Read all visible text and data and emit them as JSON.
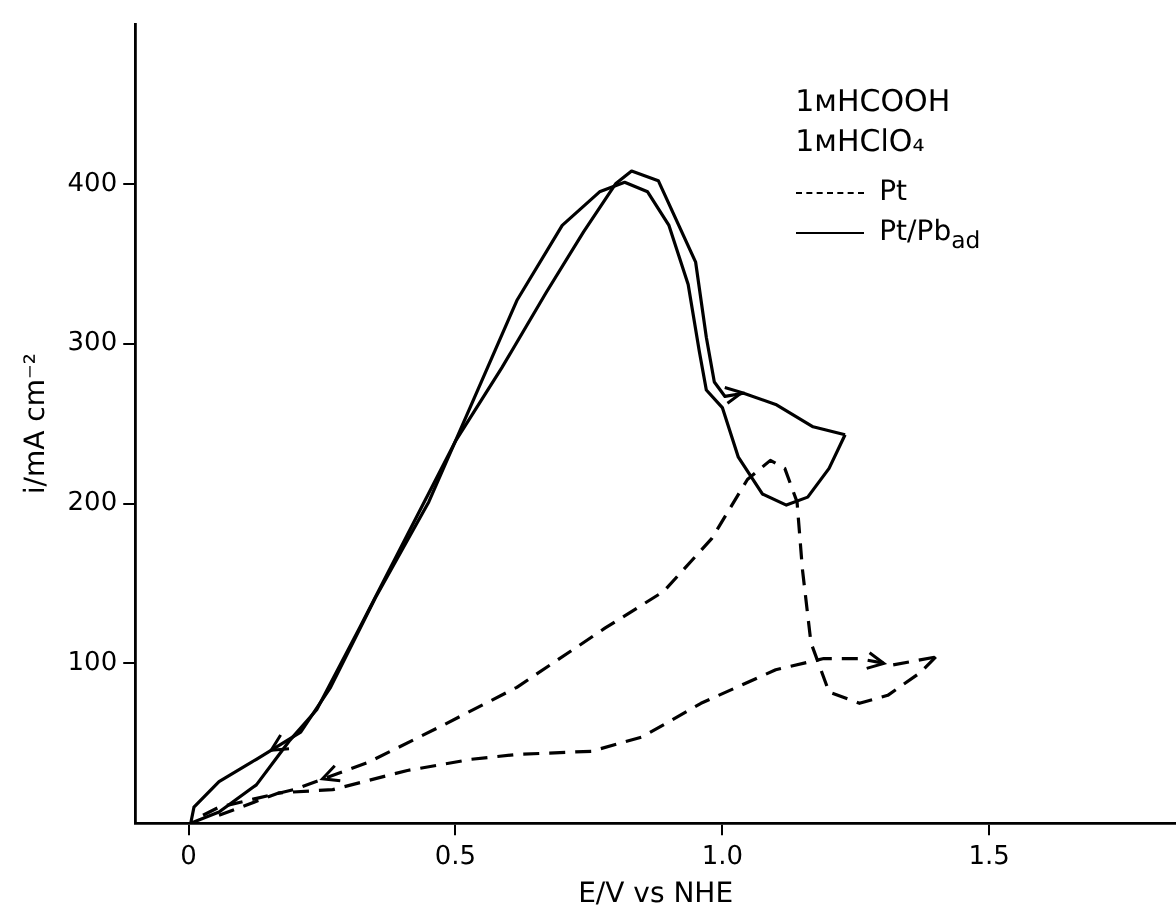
{
  "chart_data": {
    "type": "line",
    "xlabel": "E/V vs NHE",
    "ylabel": "i/mA cm⁻²",
    "annotations": [
      "1мHCOOH",
      "1мHClO₄"
    ],
    "xlim": [
      -0.1,
      1.85
    ],
    "ylim": [
      0,
      500
    ],
    "xticks": [
      {
        "value": 0,
        "label": "0"
      },
      0.5,
      {
        "value": 1,
        "label": "1.0"
      },
      1.5
    ],
    "yticks": [
      100,
      200,
      300,
      400
    ],
    "grid": false,
    "legend": "top right",
    "marker": "none",
    "series": [
      {
        "name": "Pt",
        "color": "#000000",
        "line_style": "dashed",
        "x": [
          0.057,
          0.17,
          0.27,
          0.41,
          0.53,
          0.615,
          0.755,
          0.85,
          0.96,
          1.1,
          1.19,
          1.255,
          1.32,
          1.4
        ],
        "values": [
          5,
          19,
          21,
          33,
          40,
          43,
          45,
          54,
          75,
          96,
          103,
          103,
          99,
          104
        ]
      },
      {
        "color": "#000000",
        "line_style": "dashed",
        "x": [
          1.4,
          1.37,
          1.31,
          1.257,
          1.2,
          1.166,
          1.15,
          1.14,
          1.117,
          1.09,
          1.047,
          0.98,
          0.89,
          0.78,
          0.615,
          0.475,
          0.336,
          0.197,
          0.057,
          0.015
        ],
        "values": [
          104,
          94,
          80,
          75,
          82,
          113,
          159,
          201,
          222,
          227,
          215,
          178,
          145,
          122,
          85,
          61,
          38,
          21,
          10,
          3
        ]
      },
      {
        "name": "Pt/Pb$_{ad}$",
        "color": "#000000",
        "line_style": "solid",
        "x": [
          0.004,
          0.057,
          0.127,
          0.19,
          0.24,
          0.32,
          0.42,
          0.5,
          0.587,
          0.67,
          0.74,
          0.8,
          0.83,
          0.88,
          0.95,
          0.97,
          0.985,
          1.005,
          1.04,
          1.1,
          1.17,
          1.23
        ],
        "values": [
          0,
          7,
          24,
          52,
          71,
          122,
          187,
          239,
          285,
          332,
          370,
          400,
          408,
          402,
          351,
          304,
          276,
          267,
          269,
          262,
          248,
          243
        ]
      },
      {
        "color": "#000000",
        "line_style": "solid",
        "x": [
          1.23,
          1.2,
          1.16,
          1.12,
          1.075,
          1.03,
          1.0,
          0.97,
          0.957,
          0.936,
          0.9,
          0.86,
          0.817,
          0.77,
          0.7,
          0.615,
          0.53,
          0.45,
          0.35,
          0.266,
          0.21,
          0.127,
          0.057,
          0.01,
          0.004
        ],
        "values": [
          243,
          222,
          204,
          199,
          206,
          229,
          260,
          271,
          295,
          337,
          374,
          395,
          401,
          395,
          374,
          327,
          262,
          201,
          141,
          85,
          57,
          40,
          26,
          10,
          0
        ]
      }
    ]
  }
}
